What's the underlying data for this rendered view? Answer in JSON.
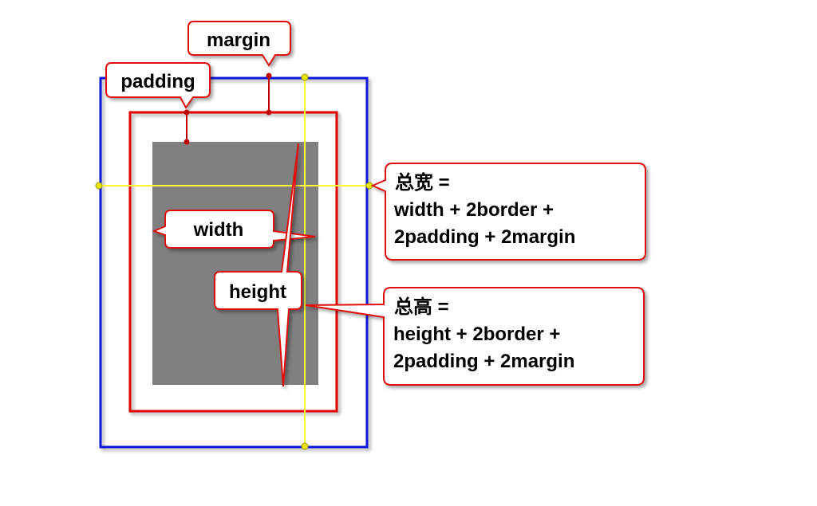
{
  "colors": {
    "margin_box": "#0b16d6",
    "border_box": "#e00000",
    "content_fill": "#808080",
    "guide_line": "#ffff33",
    "guide_dot": "#e6e600",
    "callout_border": "#e01010",
    "callout_fill": "#ffffff",
    "pin": "#c00000"
  },
  "labels": {
    "margin": "margin",
    "padding": "padding",
    "width": "width",
    "height": "height"
  },
  "total_width": {
    "line1": "总宽 =",
    "line2": "width + 2border +",
    "line3": "2padding + 2margin"
  },
  "total_height": {
    "line1": "总高 =",
    "line2": "height + 2border +",
    "line3": "2padding + 2margin"
  }
}
